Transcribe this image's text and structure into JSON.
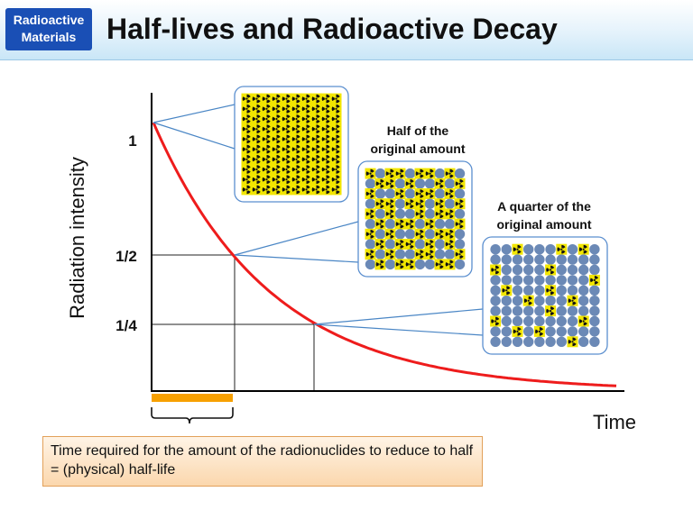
{
  "header": {
    "badge_line1": "Radioactive",
    "badge_line2": "Materials",
    "title": "Half-lives and Radioactive Decay"
  },
  "axes": {
    "ylabel": "Radiation intensity",
    "xlabel": "Time",
    "y_ticks": [
      "1",
      "1/2",
      "1/4"
    ]
  },
  "boxes": [
    {
      "caption_lines": [],
      "decayed_fraction": 0
    },
    {
      "caption_lines": [
        "Half of the",
        "original amount"
      ],
      "decayed_fraction": 0.5
    },
    {
      "caption_lines": [
        "A quarter of the",
        "original amount"
      ],
      "decayed_fraction": 0.75
    }
  ],
  "note": {
    "text": "Time required for the amount of the radionuclides to reduce to half = (physical) half-life"
  },
  "colors": {
    "curve": "#ee1c1c",
    "halflife_bar": "#f7a000",
    "atom_active": "#f2e600",
    "atom_decayed": "#6b89b6",
    "box_border": "#5b8fcf"
  }
}
